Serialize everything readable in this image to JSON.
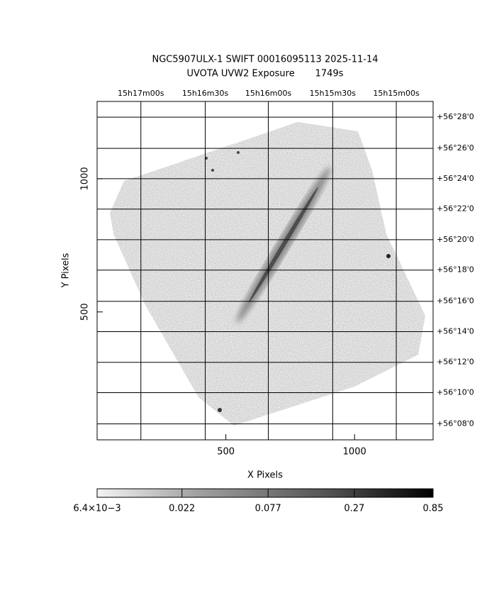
{
  "chart_data": {
    "type": "image",
    "title": "NGC5907ULX-1 SWIFT 00016095113 2025-11-14",
    "subtitle": "UVOTA UVW2 Exposure       1749s",
    "x_label": "X Pixels",
    "y_label": "Y Pixels",
    "xlim": [
      0,
      1305
    ],
    "ylim": [
      20,
      1290
    ],
    "xticks": [
      500,
      1000
    ],
    "yticks": [
      500,
      1000
    ],
    "x2ticks": [
      {
        "value": 170,
        "label": "15h17m00s"
      },
      {
        "value": 420,
        "label": "15h16m30s"
      },
      {
        "value": 665,
        "label": "15h16m00s"
      },
      {
        "value": 915,
        "label": "15h15m30s"
      },
      {
        "value": 1162,
        "label": "15h15m00s"
      }
    ],
    "y2ticks": [
      {
        "value": 1231,
        "label": "+56°28'0"
      },
      {
        "value": 1114,
        "label": "+56°26'0"
      },
      {
        "value": 1000,
        "label": "+56°24'0"
      },
      {
        "value": 886,
        "label": "+56°22'0"
      },
      {
        "value": 771,
        "label": "+56°20'0"
      },
      {
        "value": 657,
        "label": "+56°18'0"
      },
      {
        "value": 540,
        "label": "+56°16'0"
      },
      {
        "value": 426,
        "label": "+56°14'0"
      },
      {
        "value": 311,
        "label": "+56°12'0"
      },
      {
        "value": 197,
        "label": "+56°10'0"
      },
      {
        "value": 80,
        "label": "+56°08'0"
      }
    ],
    "grid": true,
    "colorbar": {
      "log": true,
      "lim": [
        0.0064,
        0.85
      ],
      "ticks": [
        {
          "value": 0.0064,
          "label": "6.4×10−3"
        },
        0.022,
        0.077,
        0.27,
        0.85
      ]
    }
  }
}
